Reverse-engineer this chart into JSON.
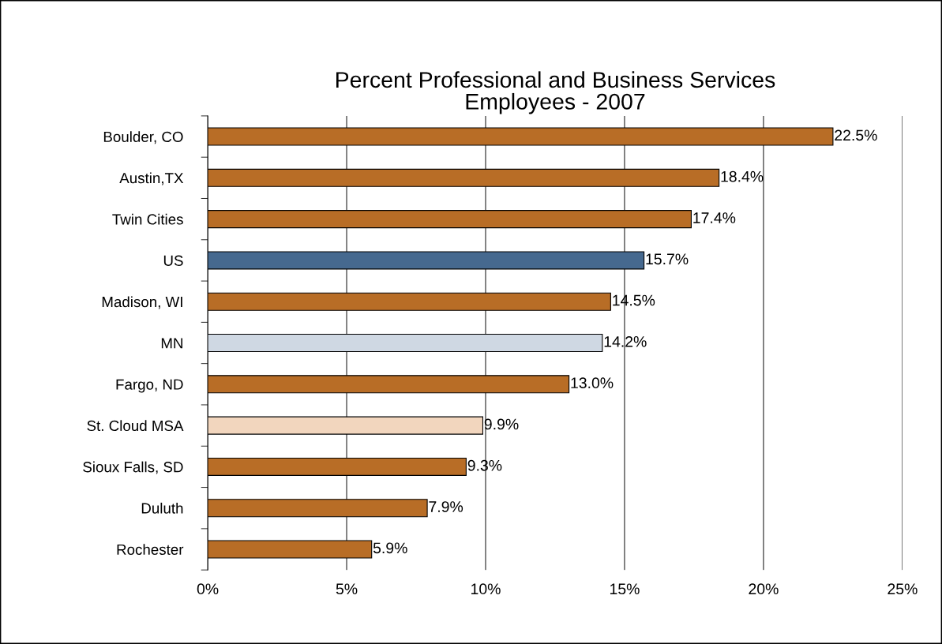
{
  "chart_data": {
    "type": "bar",
    "orientation": "horizontal",
    "title": "Percent Professional and Business Services\nEmployees - 2007",
    "categories": [
      "Boulder, CO",
      "Austin,TX",
      "Twin Cities",
      "US",
      "Madison, WI",
      "MN",
      "Fargo, ND",
      "St. Cloud MSA",
      "Sioux Falls, SD",
      "Duluth",
      "Rochester"
    ],
    "values": [
      22.5,
      18.4,
      17.4,
      15.7,
      14.5,
      14.2,
      13.0,
      9.9,
      9.3,
      7.9,
      5.9
    ],
    "colors": [
      "#b86d26",
      "#b86d26",
      "#b86d26",
      "#46698f",
      "#b86d26",
      "#cfd8e3",
      "#b86d26",
      "#f2d6be",
      "#b86d26",
      "#b86d26",
      "#b86d26"
    ],
    "value_labels": [
      "22.5%",
      "18.4%",
      "17.4%",
      "15.7%",
      "14.5%",
      "14.2%",
      "13.0%",
      "9.9%",
      "9.3%",
      "7.9%",
      "5.9%"
    ],
    "xlim": [
      0,
      25
    ],
    "xticks": [
      {
        "value": 0,
        "label": "0%"
      },
      {
        "value": 5,
        "label": "5%"
      },
      {
        "value": 10,
        "label": "10%"
      },
      {
        "value": 15,
        "label": "15%"
      },
      {
        "value": 20,
        "label": "20%"
      },
      {
        "value": 25,
        "label": "25%"
      }
    ],
    "grid": "x"
  }
}
